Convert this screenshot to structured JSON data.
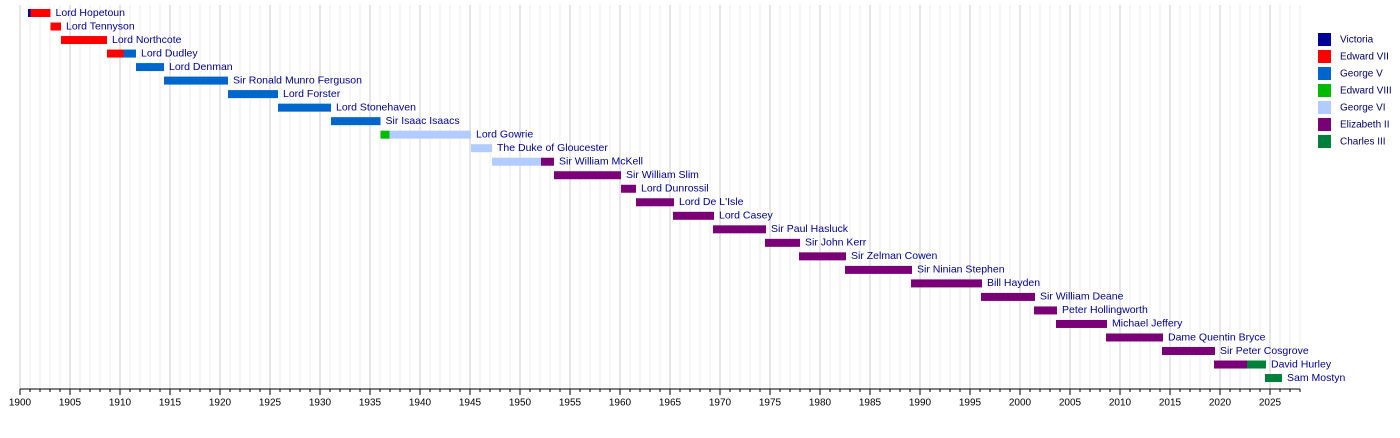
{
  "chart_data": {
    "type": "timeline",
    "xlim": [
      1900,
      2028
    ],
    "xticks": [
      1900,
      1905,
      1910,
      1915,
      1920,
      1925,
      1930,
      1935,
      1940,
      1945,
      1950,
      1955,
      1960,
      1965,
      1970,
      1975,
      1980,
      1985,
      1990,
      1995,
      2000,
      2005,
      2010,
      2015,
      2020,
      2025
    ],
    "minor_tick_step": 1,
    "grid": true,
    "legend": "right",
    "series": [
      {
        "name": "Victoria",
        "color": "#000099"
      },
      {
        "name": "Edward VII",
        "color": "#ff0000"
      },
      {
        "name": "George V",
        "color": "#0066cc"
      },
      {
        "name": "Edward VIII",
        "color": "#00bb00"
      },
      {
        "name": "George VI",
        "color": "#b3ccff"
      },
      {
        "name": "Elizabeth II",
        "color": "#7a0077"
      },
      {
        "name": "Charles III",
        "color": "#00803a"
      }
    ],
    "rows": [
      {
        "label": "Lord Hopetoun",
        "segments": [
          {
            "monarch": "Victoria",
            "start": 1900.8,
            "end": 1901.05
          },
          {
            "monarch": "Edward VII",
            "start": 1901.05,
            "end": 1903.05
          }
        ]
      },
      {
        "label": "Lord Tennyson",
        "segments": [
          {
            "monarch": "Edward VII",
            "start": 1903.05,
            "end": 1904.1
          }
        ]
      },
      {
        "label": "Lord Northcote",
        "segments": [
          {
            "monarch": "Edward VII",
            "start": 1904.1,
            "end": 1908.7
          }
        ]
      },
      {
        "label": "Lord Dudley",
        "segments": [
          {
            "monarch": "Edward VII",
            "start": 1908.7,
            "end": 1910.35
          },
          {
            "monarch": "George V",
            "start": 1910.35,
            "end": 1911.6
          }
        ]
      },
      {
        "label": "Lord Denman",
        "segments": [
          {
            "monarch": "George V",
            "start": 1911.6,
            "end": 1914.4
          }
        ]
      },
      {
        "label": "Sir Ronald Munro Ferguson",
        "segments": [
          {
            "monarch": "George V",
            "start": 1914.4,
            "end": 1920.8
          }
        ]
      },
      {
        "label": "Lord Forster",
        "segments": [
          {
            "monarch": "George V",
            "start": 1920.8,
            "end": 1925.8
          }
        ]
      },
      {
        "label": "Lord Stonehaven",
        "segments": [
          {
            "monarch": "George V",
            "start": 1925.8,
            "end": 1931.1
          }
        ]
      },
      {
        "label": "Sir Isaac Isaacs",
        "segments": [
          {
            "monarch": "George V",
            "start": 1931.1,
            "end": 1936.05
          }
        ]
      },
      {
        "label": "Lord Gowrie",
        "segments": [
          {
            "monarch": "Edward VIII",
            "start": 1936.05,
            "end": 1936.95
          },
          {
            "monarch": "George VI",
            "start": 1936.95,
            "end": 1945.1
          }
        ]
      },
      {
        "label": "The Duke of Gloucester",
        "segments": [
          {
            "monarch": "George VI",
            "start": 1945.1,
            "end": 1947.2
          }
        ]
      },
      {
        "label": "Sir William McKell",
        "segments": [
          {
            "monarch": "George VI",
            "start": 1947.2,
            "end": 1952.1
          },
          {
            "monarch": "Elizabeth II",
            "start": 1952.1,
            "end": 1953.4
          }
        ]
      },
      {
        "label": "Sir William Slim",
        "segments": [
          {
            "monarch": "Elizabeth II",
            "start": 1953.4,
            "end": 1960.1
          }
        ]
      },
      {
        "label": "Lord Dunrossil",
        "segments": [
          {
            "monarch": "Elizabeth II",
            "start": 1960.1,
            "end": 1961.6
          }
        ]
      },
      {
        "label": "Lord De L'Isle",
        "segments": [
          {
            "monarch": "Elizabeth II",
            "start": 1961.6,
            "end": 1965.4
          }
        ]
      },
      {
        "label": "Lord Casey",
        "segments": [
          {
            "monarch": "Elizabeth II",
            "start": 1965.3,
            "end": 1969.4
          }
        ]
      },
      {
        "label": "Sir Paul Hasluck",
        "segments": [
          {
            "monarch": "Elizabeth II",
            "start": 1969.3,
            "end": 1974.6
          }
        ]
      },
      {
        "label": "Sir John Kerr",
        "segments": [
          {
            "monarch": "Elizabeth II",
            "start": 1974.5,
            "end": 1978.0
          }
        ]
      },
      {
        "label": "Sir Zelman Cowen",
        "segments": [
          {
            "monarch": "Elizabeth II",
            "start": 1977.9,
            "end": 1982.6
          }
        ]
      },
      {
        "label": "Sir Ninian Stephen",
        "segments": [
          {
            "monarch": "Elizabeth II",
            "start": 1982.5,
            "end": 1989.2
          }
        ]
      },
      {
        "label": "Bill Hayden",
        "segments": [
          {
            "monarch": "Elizabeth II",
            "start": 1989.1,
            "end": 1996.2
          }
        ]
      },
      {
        "label": "Sir William Deane",
        "segments": [
          {
            "monarch": "Elizabeth II",
            "start": 1996.1,
            "end": 2001.5
          }
        ]
      },
      {
        "label": "Peter Hollingworth",
        "segments": [
          {
            "monarch": "Elizabeth II",
            "start": 2001.4,
            "end": 2003.7
          }
        ]
      },
      {
        "label": "Michael Jeffery",
        "segments": [
          {
            "monarch": "Elizabeth II",
            "start": 2003.6,
            "end": 2008.7
          }
        ]
      },
      {
        "label": "Dame Quentin Bryce",
        "segments": [
          {
            "monarch": "Elizabeth II",
            "start": 2008.6,
            "end": 2014.3
          }
        ]
      },
      {
        "label": "Sir Peter Cosgrove",
        "segments": [
          {
            "monarch": "Elizabeth II",
            "start": 2014.2,
            "end": 2019.5
          }
        ]
      },
      {
        "label": "David Hurley",
        "segments": [
          {
            "monarch": "Elizabeth II",
            "start": 2019.4,
            "end": 2022.7
          },
          {
            "monarch": "Charles III",
            "start": 2022.7,
            "end": 2024.6
          }
        ]
      },
      {
        "label": "Sam Mostyn",
        "segments": [
          {
            "monarch": "Charles III",
            "start": 2024.5,
            "end": 2026.2
          }
        ]
      }
    ]
  }
}
